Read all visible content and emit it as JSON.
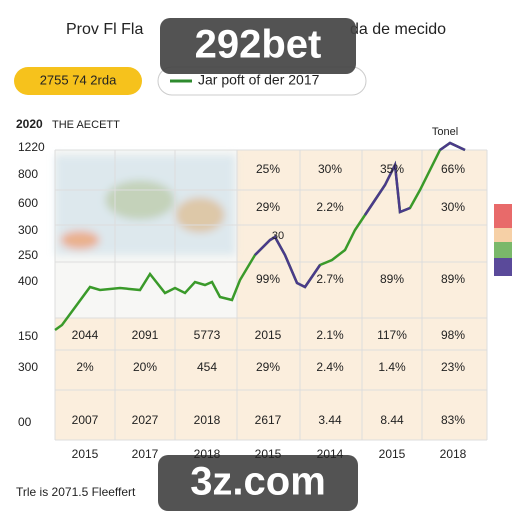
{
  "header": {
    "title": "Prov Fl Fla",
    "title_end": "da de mecido",
    "pill": "2755 74 2rda",
    "legend": "Jar poft of der 2017"
  },
  "watermarks": [
    "292bet",
    "3z.com"
  ],
  "chart": {
    "subtitle_year": "2020",
    "subtitle": "THE AECETT",
    "y_labels": [
      "1220",
      "800",
      "600",
      "300",
      "250",
      "400",
      "150",
      "300",
      "00"
    ],
    "x_labels": [
      "2015",
      "2017",
      "2018",
      "2015",
      "2014",
      "2015",
      "2018"
    ],
    "annotations": [
      "Tonel",
      "30"
    ],
    "table": {
      "rows": [
        [
          null,
          null,
          null,
          "25%",
          "30%",
          "35%",
          "66%"
        ],
        [
          null,
          null,
          null,
          "29%",
          "2.2%",
          null,
          "30%"
        ],
        [
          null,
          null,
          null,
          "99%",
          "2.7%",
          "89%",
          "89%"
        ],
        [
          "2044",
          "2091",
          "5773",
          "2015",
          "2.1%",
          "117%",
          "98%"
        ],
        [
          "2%",
          "20%",
          "454",
          "29%",
          "2.4%",
          "1.4%",
          "23%"
        ],
        [
          "2007",
          "2027",
          "2018",
          "2617",
          "3.44",
          "8.44",
          "83%"
        ]
      ]
    }
  },
  "footer": "Trle is 2071.5 Fleeffert"
}
